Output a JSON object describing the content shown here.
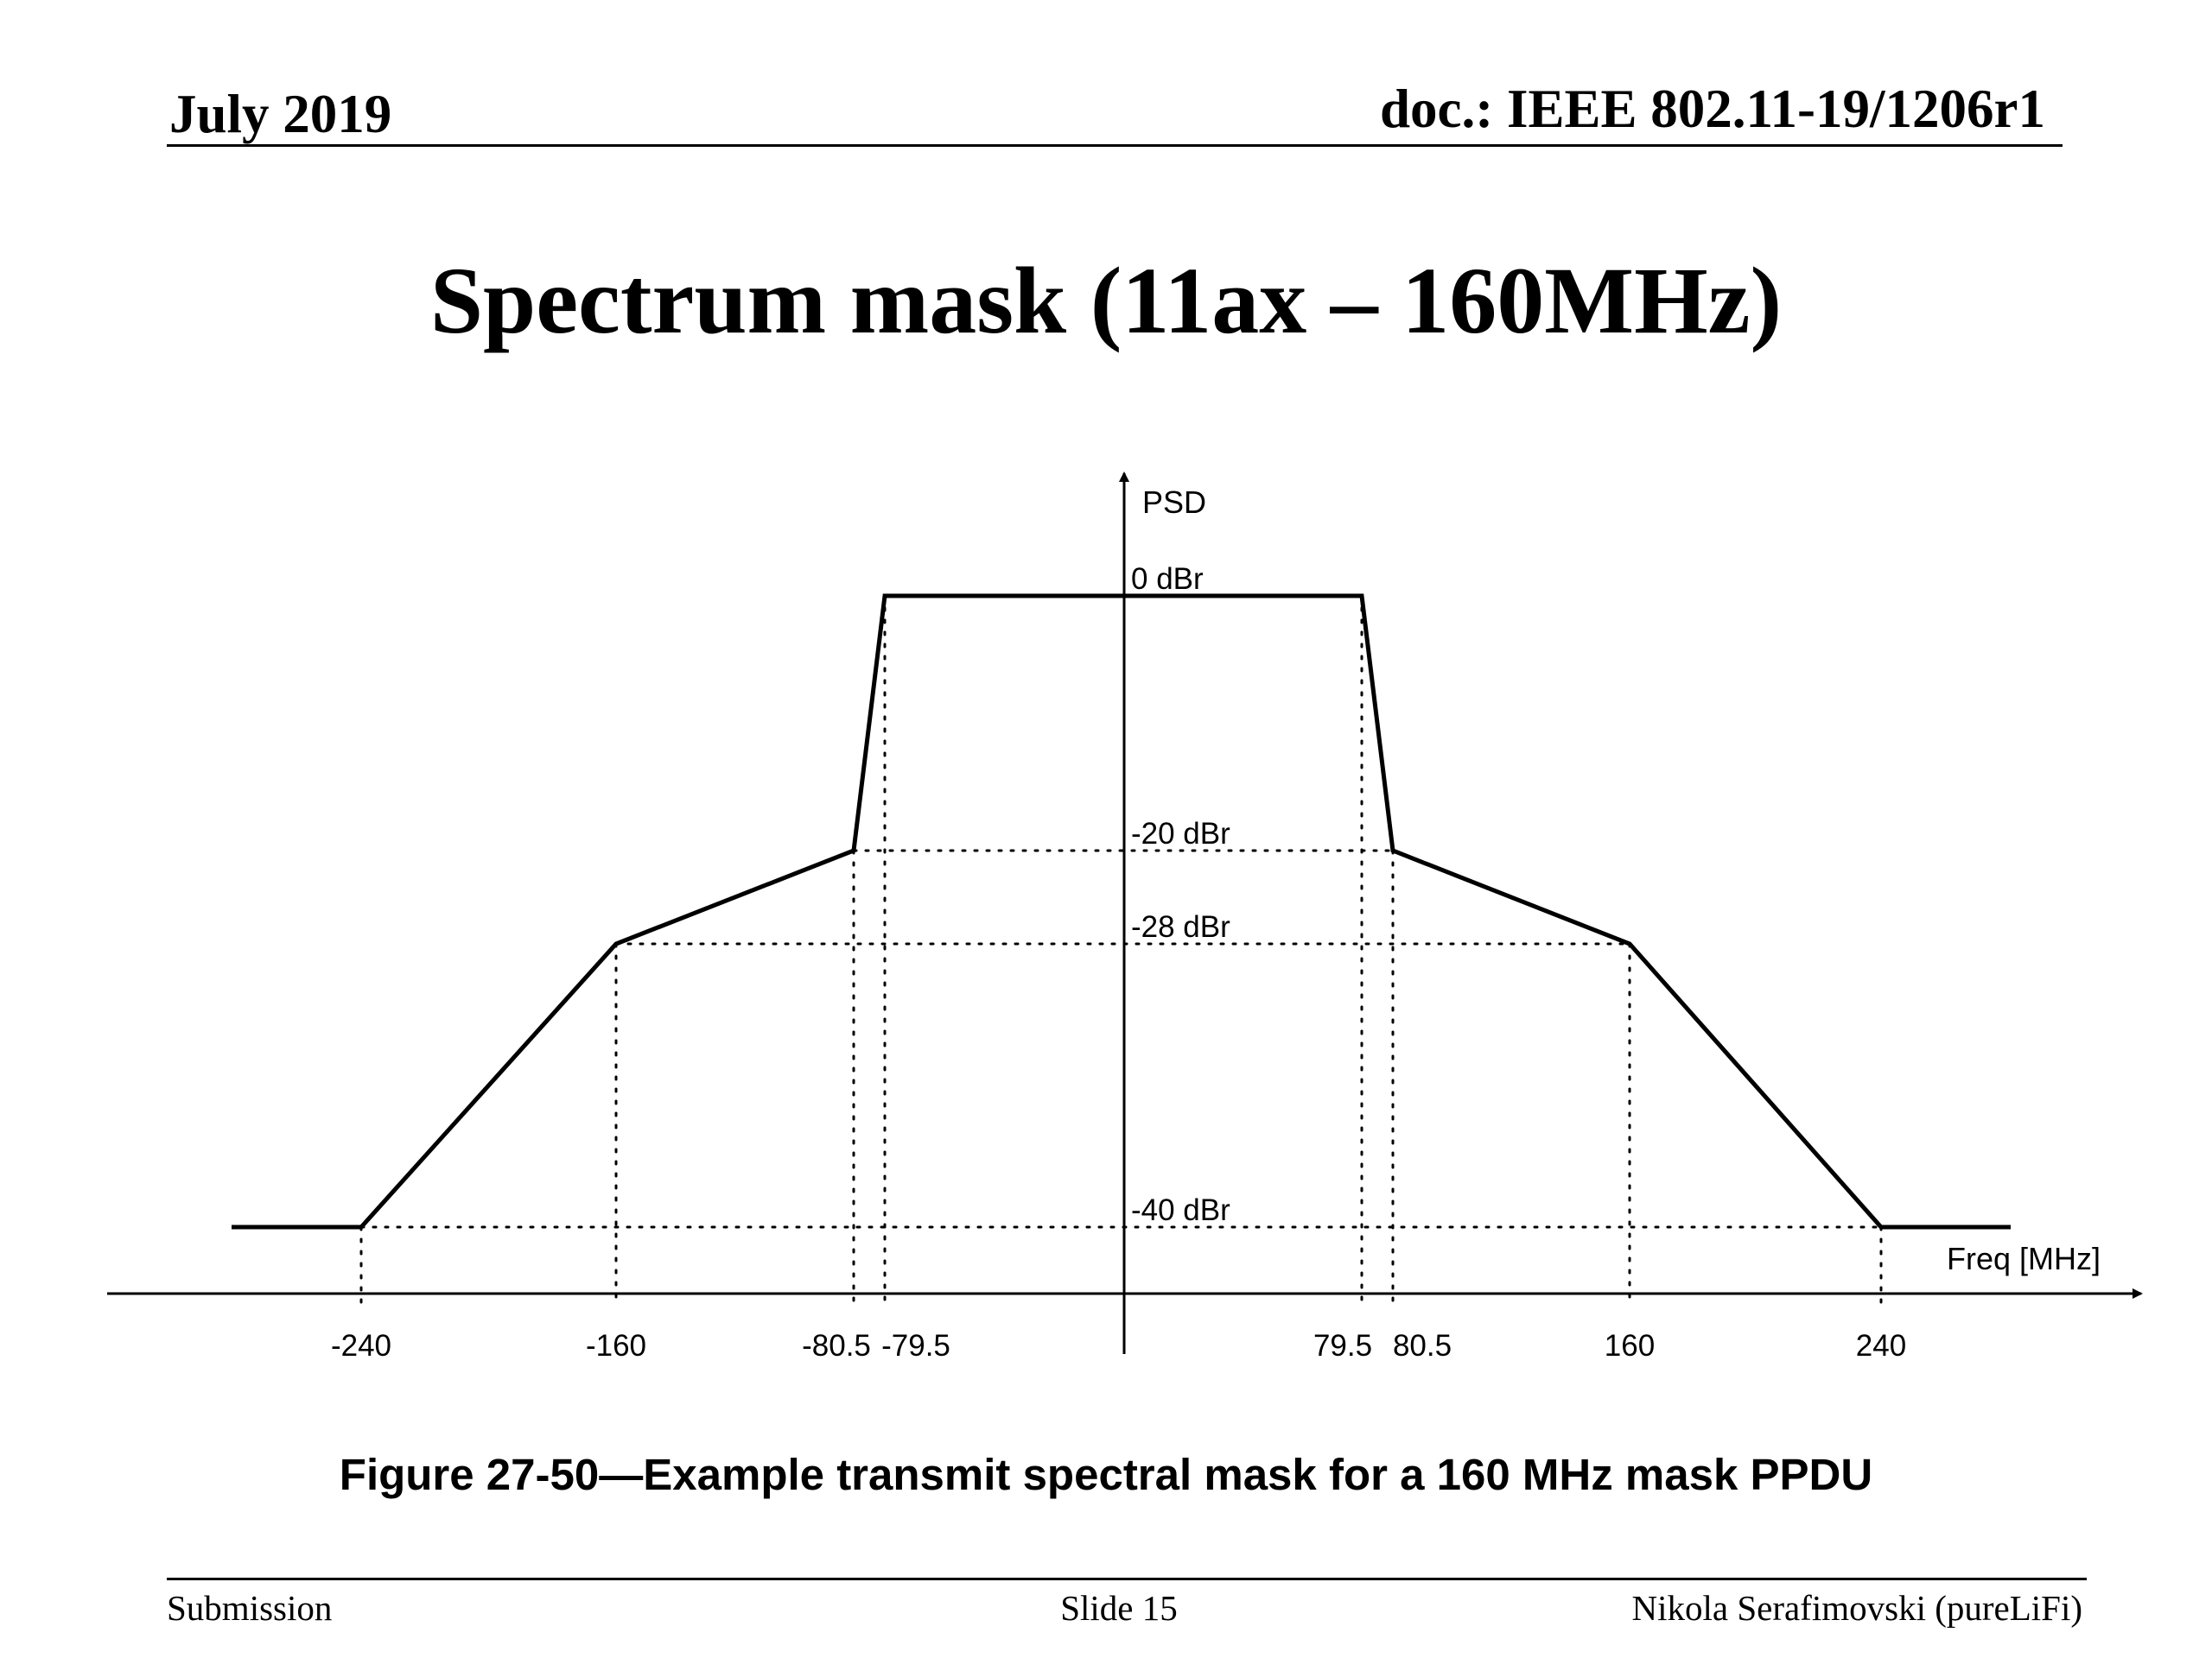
{
  "header": {
    "date": "July 2019",
    "doc": "doc.: IEEE 802.11-19/1206r1"
  },
  "slide": {
    "title": "Spectrum mask (11ax – 160MHz)"
  },
  "footer": {
    "left": "Submission",
    "center": "Slide 15",
    "right": "Nikola Serafimovski (pureLiFi)"
  },
  "chart_data": {
    "type": "line",
    "title": "Figure 27-50—Example transmit spectral mask for a 160 MHz mask PPDU",
    "xlabel": "Freq [MHz]",
    "ylabel": "PSD",
    "series": [
      {
        "x": [
          -240,
          -160,
          -80.5,
          -79.5,
          79.5,
          80.5,
          160,
          240
        ],
        "y": [
          -40,
          -28,
          -20,
          0,
          0,
          -20,
          -28,
          -40
        ]
      }
    ],
    "x_ticks": [
      {
        "value": -240,
        "label": "-240"
      },
      {
        "value": -160,
        "label": "-160"
      },
      {
        "value": -80.5,
        "label": "-80.5"
      },
      {
        "value": -79.5,
        "label": "-79.5"
      },
      {
        "value": 79.5,
        "label": "79.5"
      },
      {
        "value": 80.5,
        "label": "80.5"
      },
      {
        "value": 160,
        "label": "160"
      },
      {
        "value": 240,
        "label": "240"
      }
    ],
    "y_levels": [
      {
        "value": 0,
        "label": "0 dBr"
      },
      {
        "value": -20,
        "label": "-20 dBr"
      },
      {
        "value": -28,
        "label": "-28 dBr"
      },
      {
        "value": -40,
        "label": "-40 dBr"
      }
    ],
    "reference_lines": "dotted",
    "grid": false,
    "legend": "none"
  }
}
